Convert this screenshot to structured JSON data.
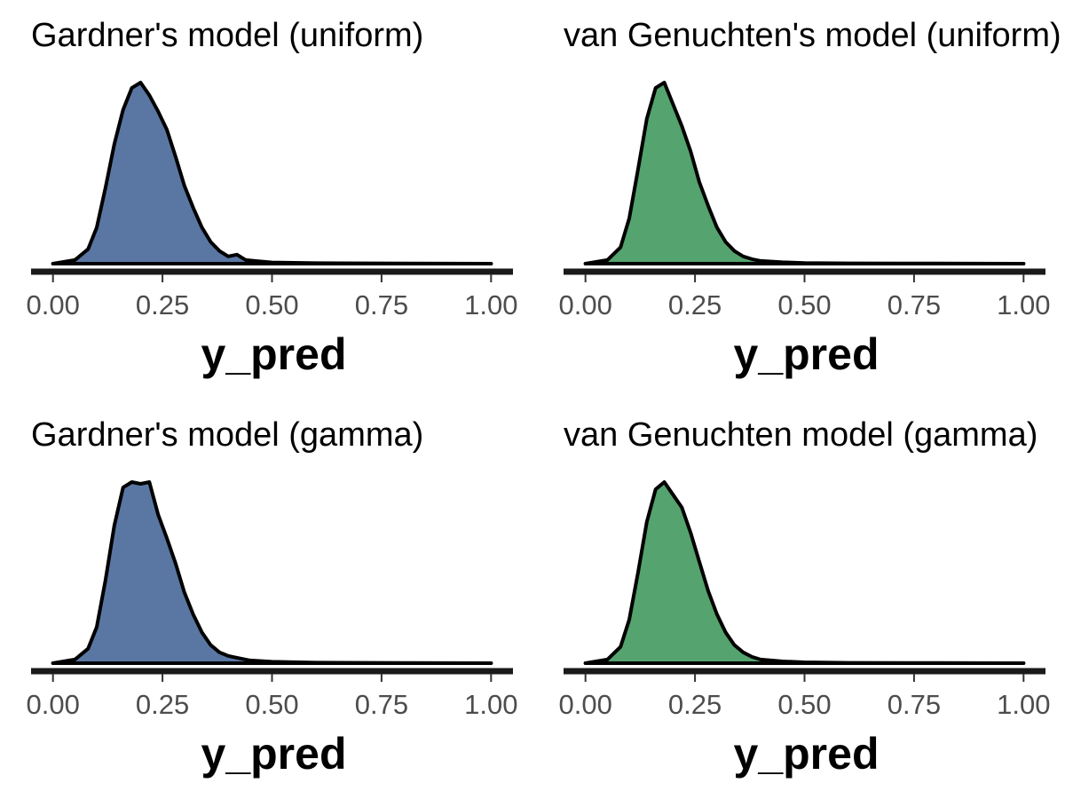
{
  "chart_data": [
    {
      "type": "area",
      "title": "Gardner's model (uniform)",
      "xlabel": "y_pred",
      "ylabel": "",
      "xlim": [
        -0.05,
        1.05
      ],
      "ylim": [
        0,
        1
      ],
      "x_ticks": [
        0.0,
        0.25,
        0.5,
        0.75,
        1.0
      ],
      "x_tick_labels": [
        "0.00",
        "0.25",
        "0.50",
        "0.75",
        "1.00"
      ],
      "y_axis_shown": false,
      "grid": false,
      "fill_color": "#5a77a3",
      "series": [
        {
          "x": [
            0.0,
            0.05,
            0.08,
            0.1,
            0.12,
            0.14,
            0.16,
            0.18,
            0.2,
            0.22,
            0.24,
            0.26,
            0.28,
            0.3,
            0.32,
            0.34,
            0.36,
            0.38,
            0.4,
            0.42,
            0.44,
            0.46,
            0.5,
            0.6,
            0.8,
            1.0
          ],
          "y": [
            0.0,
            0.02,
            0.08,
            0.2,
            0.42,
            0.66,
            0.85,
            0.97,
            1.0,
            0.93,
            0.84,
            0.74,
            0.59,
            0.43,
            0.31,
            0.2,
            0.12,
            0.07,
            0.04,
            0.05,
            0.02,
            0.015,
            0.007,
            0.003,
            0.001,
            0.0
          ]
        }
      ]
    },
    {
      "type": "area",
      "title": "van Genuchten's model (uniform)",
      "xlabel": "y_pred",
      "ylabel": "",
      "xlim": [
        -0.05,
        1.05
      ],
      "ylim": [
        0,
        1
      ],
      "x_ticks": [
        0.0,
        0.25,
        0.5,
        0.75,
        1.0
      ],
      "x_tick_labels": [
        "0.00",
        "0.25",
        "0.50",
        "0.75",
        "1.00"
      ],
      "y_axis_shown": false,
      "grid": false,
      "fill_color": "#55a36e",
      "series": [
        {
          "x": [
            0.0,
            0.05,
            0.08,
            0.1,
            0.12,
            0.14,
            0.16,
            0.18,
            0.2,
            0.22,
            0.24,
            0.26,
            0.28,
            0.3,
            0.32,
            0.34,
            0.36,
            0.38,
            0.4,
            0.45,
            0.5,
            0.6,
            0.8,
            1.0
          ],
          "y": [
            0.0,
            0.02,
            0.09,
            0.25,
            0.52,
            0.8,
            0.97,
            1.0,
            0.88,
            0.76,
            0.62,
            0.45,
            0.32,
            0.2,
            0.12,
            0.07,
            0.04,
            0.025,
            0.015,
            0.008,
            0.004,
            0.002,
            0.001,
            0.0
          ]
        }
      ]
    },
    {
      "type": "area",
      "title": "Gardner's model (gamma)",
      "xlabel": "y_pred",
      "ylabel": "",
      "xlim": [
        -0.05,
        1.05
      ],
      "ylim": [
        0,
        1
      ],
      "x_ticks": [
        0.0,
        0.25,
        0.5,
        0.75,
        1.0
      ],
      "x_tick_labels": [
        "0.00",
        "0.25",
        "0.50",
        "0.75",
        "1.00"
      ],
      "y_axis_shown": false,
      "grid": false,
      "fill_color": "#5a77a3",
      "series": [
        {
          "x": [
            0.0,
            0.05,
            0.08,
            0.1,
            0.12,
            0.14,
            0.16,
            0.18,
            0.2,
            0.22,
            0.24,
            0.26,
            0.28,
            0.3,
            0.32,
            0.34,
            0.36,
            0.38,
            0.4,
            0.42,
            0.45,
            0.5,
            0.6,
            0.8,
            1.0
          ],
          "y": [
            0.0,
            0.02,
            0.08,
            0.2,
            0.46,
            0.76,
            0.97,
            1.0,
            0.99,
            1.0,
            0.82,
            0.69,
            0.55,
            0.39,
            0.27,
            0.17,
            0.1,
            0.06,
            0.04,
            0.03,
            0.015,
            0.008,
            0.003,
            0.001,
            0.0
          ]
        }
      ]
    },
    {
      "type": "area",
      "title": "van Genuchten model (gamma)",
      "xlabel": "y_pred",
      "ylabel": "",
      "xlim": [
        -0.05,
        1.05
      ],
      "ylim": [
        0,
        1
      ],
      "x_ticks": [
        0.0,
        0.25,
        0.5,
        0.75,
        1.0
      ],
      "x_tick_labels": [
        "0.00",
        "0.25",
        "0.50",
        "0.75",
        "1.00"
      ],
      "y_axis_shown": false,
      "grid": false,
      "fill_color": "#55a36e",
      "series": [
        {
          "x": [
            0.0,
            0.05,
            0.08,
            0.1,
            0.12,
            0.14,
            0.16,
            0.18,
            0.2,
            0.22,
            0.24,
            0.26,
            0.28,
            0.3,
            0.32,
            0.34,
            0.36,
            0.38,
            0.4,
            0.45,
            0.5,
            0.6,
            0.8,
            1.0
          ],
          "y": [
            0.0,
            0.02,
            0.09,
            0.24,
            0.5,
            0.78,
            0.96,
            1.0,
            0.93,
            0.86,
            0.72,
            0.56,
            0.4,
            0.27,
            0.17,
            0.1,
            0.06,
            0.035,
            0.02,
            0.01,
            0.005,
            0.002,
            0.001,
            0.0
          ]
        }
      ]
    }
  ]
}
